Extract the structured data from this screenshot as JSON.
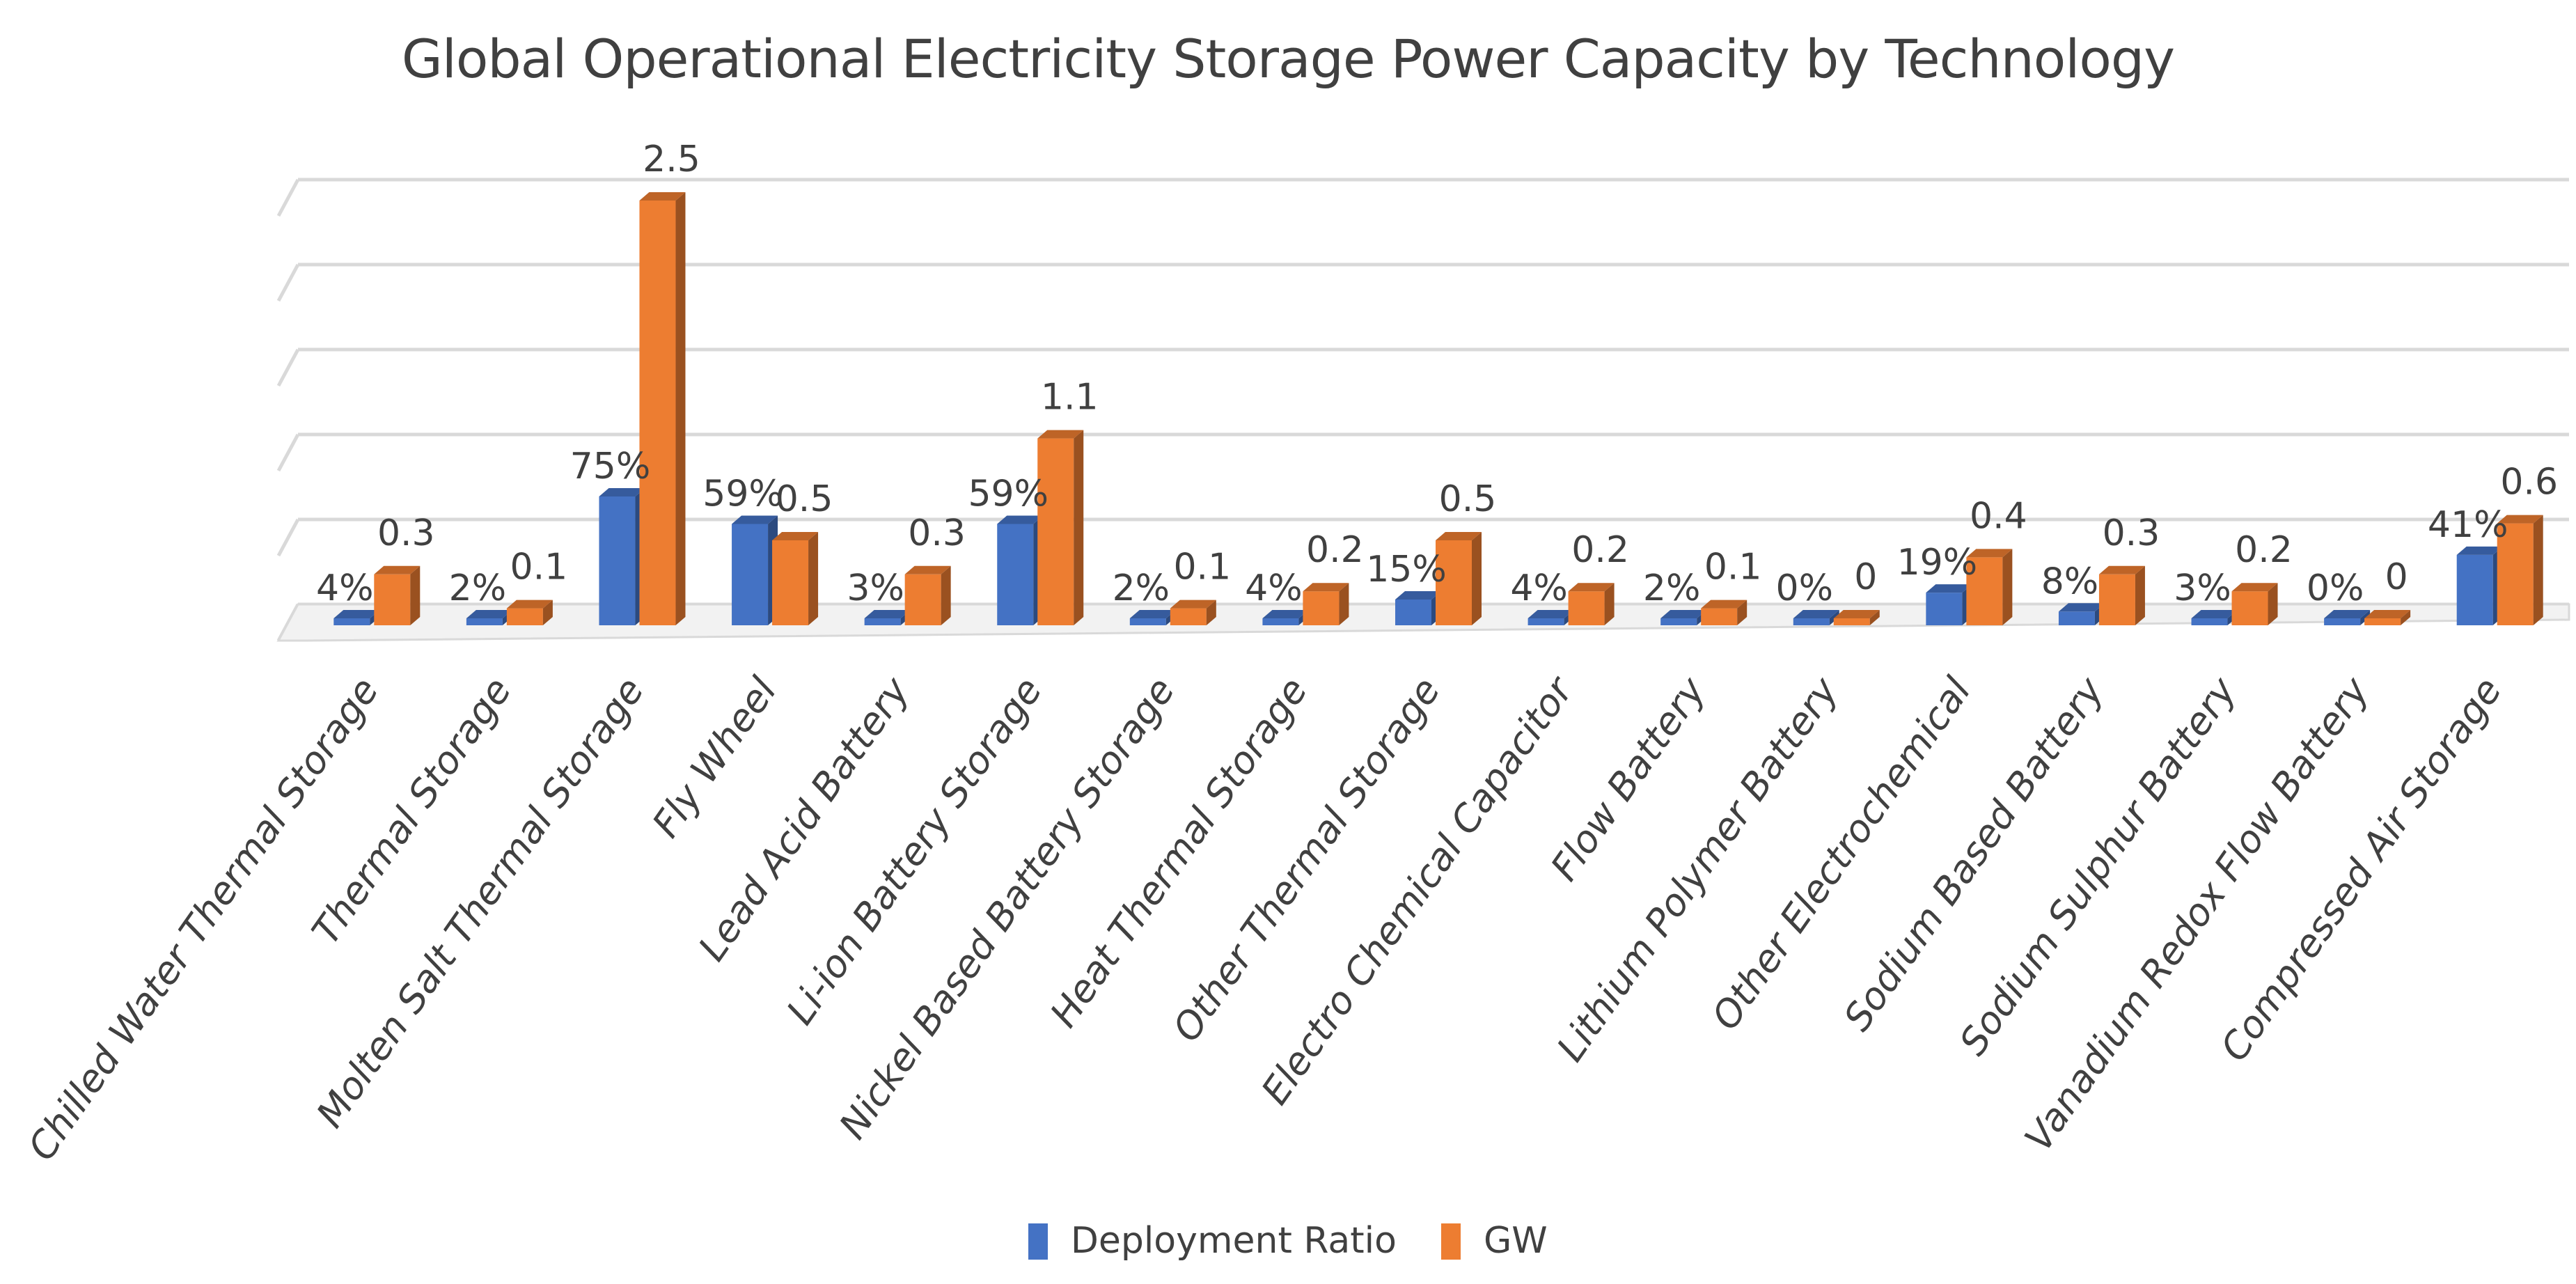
{
  "chart_data": {
    "type": "bar",
    "title": "Global Operational Electricity Storage Power Capacity by Technology",
    "categories": [
      "Chilled Water Thermal Storage",
      "Thermal Storage",
      "Molten Salt Thermal Storage",
      "Fly Wheel",
      "Lead Acid Battery",
      "Li-ion Battery Storage",
      "Nickel Based Battery Storage",
      "Heat Thermal Storage",
      "Other Thermal Storage",
      "Electro Chemical Capacitor",
      "Flow Battery",
      "Lithium Polymer Battery",
      "Other Electrochemical",
      "Sodium Based Battery",
      "Sodium Sulphur Battery",
      "Vanadium Redox Flow Battery",
      "Compressed Air Storage"
    ],
    "series": [
      {
        "name": "Deployment Ratio",
        "values": [
          4,
          2,
          75,
          59,
          3,
          59,
          2,
          4,
          15,
          4,
          2,
          0,
          19,
          8,
          3,
          0,
          41
        ],
        "labels": [
          "4%",
          "2%",
          "75%",
          "59%",
          "3%",
          "59%",
          "2%",
          "4%",
          "15%",
          "4%",
          "2%",
          "0%",
          "19%",
          "8%",
          "3%",
          "0%",
          "41%"
        ],
        "color": "#4472C4"
      },
      {
        "name": "GW",
        "values": [
          0.3,
          0.1,
          2.5,
          0.5,
          0.3,
          1.1,
          0.1,
          0.2,
          0.5,
          0.2,
          0.1,
          0,
          0.4,
          0.3,
          0.2,
          0,
          0.6
        ],
        "labels": [
          "0.3",
          "0.1",
          "2.5",
          "0.5",
          "0.3",
          "1.1",
          "0.1",
          "0.2",
          "0.5",
          "0.2",
          "0.1",
          "0",
          "0.4",
          "0.3",
          "0.2",
          "0",
          "0.6"
        ],
        "color": "#ED7D31"
      }
    ],
    "legend_position": "bottom",
    "gridlines": true,
    "style": "3d-clustered-column"
  }
}
